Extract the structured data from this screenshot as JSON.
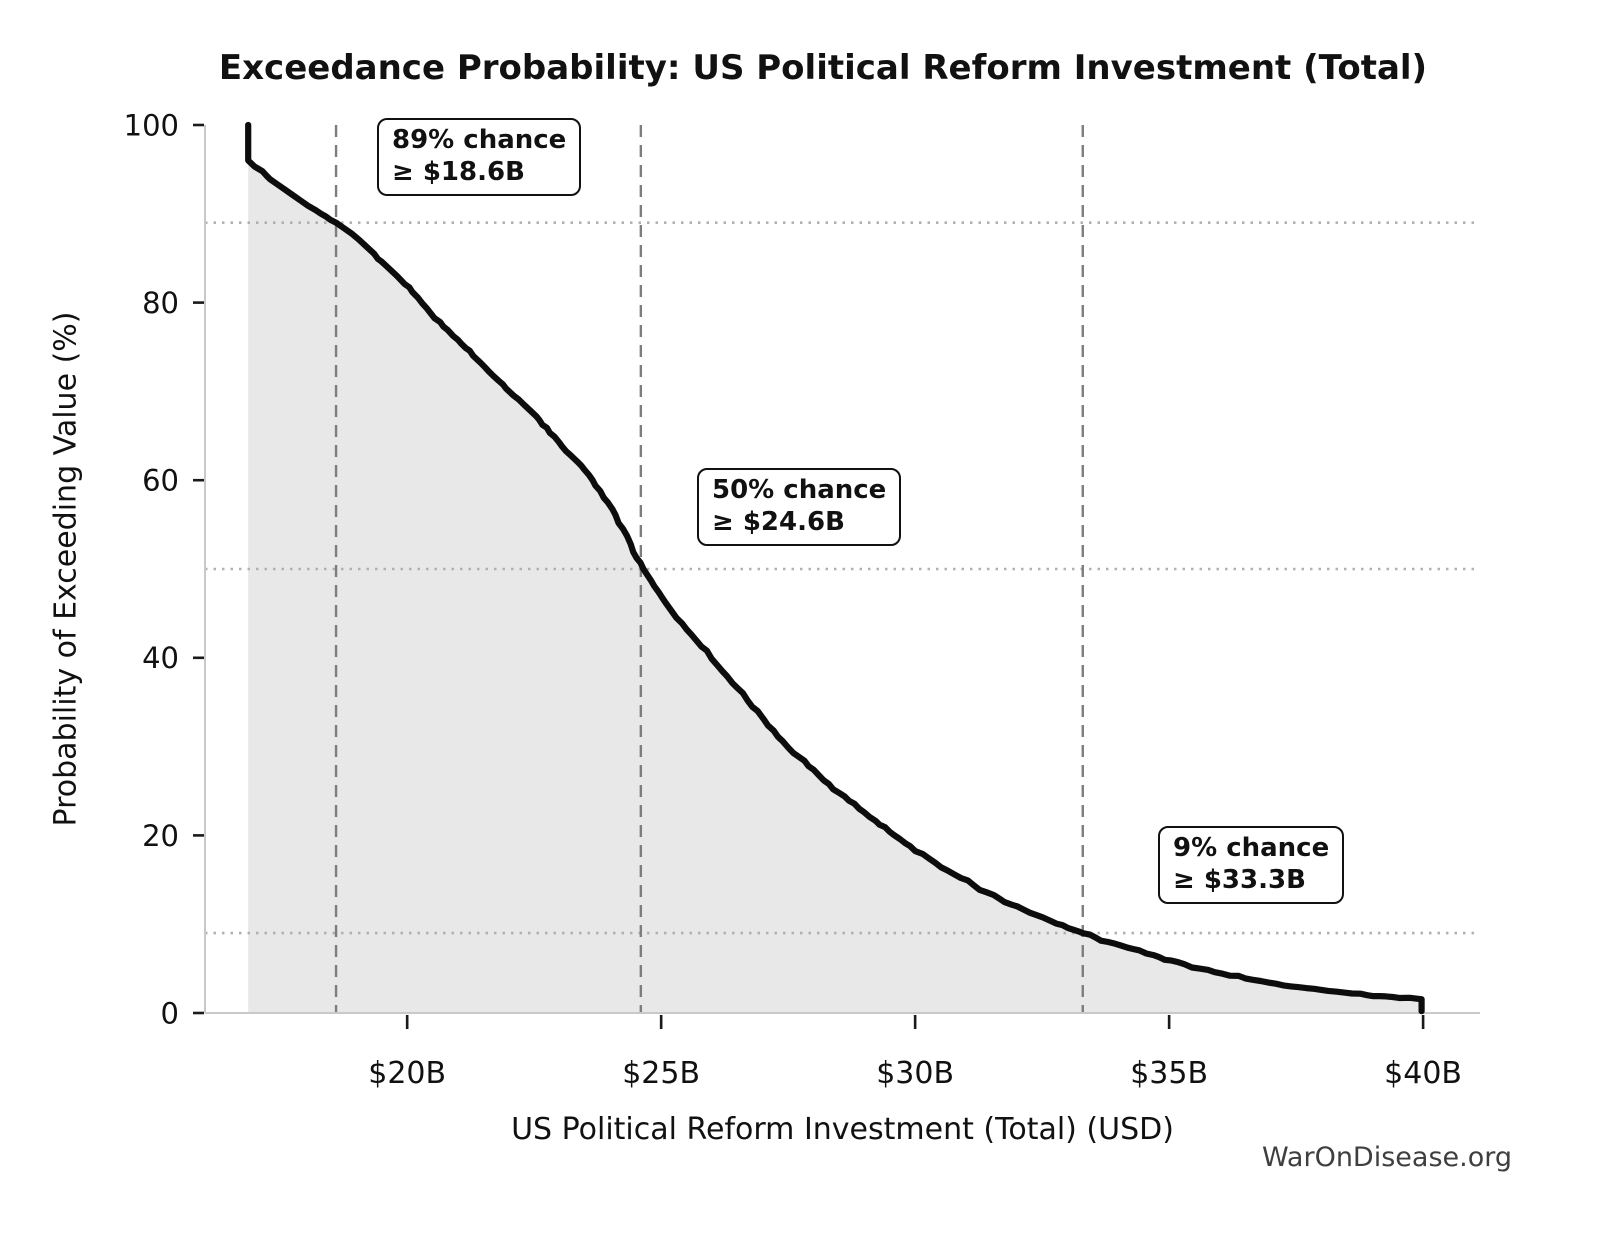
{
  "figure": {
    "title": "Exceedance Probability: US Political Reform Investment (Total)",
    "x_axis_label": "US Political Reform Investment (Total) (USD)",
    "y_axis_label": "Probability of Exceeding Value (%)",
    "watermark": "WarOnDisease.org"
  },
  "annotations": [
    {
      "line1": "89% chance",
      "line2": "≥ $18.6B",
      "value_b": 18.6,
      "probability_pct": 89
    },
    {
      "line1": "50% chance",
      "line2": "≥ $24.6B",
      "value_b": 24.6,
      "probability_pct": 50
    },
    {
      "line1": "9% chance",
      "line2": "≥ $33.3B",
      "value_b": 33.3,
      "probability_pct": 9
    }
  ],
  "chart_data": {
    "type": "line",
    "title": "Exceedance Probability: US Political Reform Investment (Total)",
    "xlabel": "US Political Reform Investment (Total) (USD)",
    "ylabel": "Probability of Exceeding Value (%)",
    "xlim": [
      16.02,
      41.12
    ],
    "ylim": [
      0,
      100
    ],
    "grid": "off (reference lines only)",
    "legend": "none",
    "x_ticks": [
      {
        "value": 20,
        "label": "$20B"
      },
      {
        "value": 25,
        "label": "$25B"
      },
      {
        "value": 30,
        "label": "$30B"
      },
      {
        "value": 35,
        "label": "$35B"
      },
      {
        "value": 40,
        "label": "$40B"
      }
    ],
    "y_ticks": [
      {
        "value": 0,
        "label": "0"
      },
      {
        "value": 20,
        "label": "20"
      },
      {
        "value": 40,
        "label": "40"
      },
      {
        "value": 60,
        "label": "60"
      },
      {
        "value": 80,
        "label": "80"
      },
      {
        "value": 100,
        "label": "100"
      }
    ],
    "reference_lines": {
      "vertical_dashed_values_b": [
        18.6,
        24.6,
        33.3
      ],
      "horizontal_dotted_probs_pct": [
        89,
        50,
        9
      ]
    },
    "series": [
      {
        "name": "Exceedance probability",
        "points_value_b_vs_prob_pct": [
          [
            16.87,
            100
          ],
          [
            16.87,
            96.0
          ],
          [
            17.0,
            95.3
          ],
          [
            17.15,
            94.8
          ],
          [
            17.3,
            93.9
          ],
          [
            17.45,
            93.3
          ],
          [
            17.6,
            92.7
          ],
          [
            17.75,
            92.1
          ],
          [
            17.9,
            91.5
          ],
          [
            18.05,
            90.9
          ],
          [
            18.2,
            90.4
          ],
          [
            18.4,
            89.7
          ],
          [
            18.6,
            89.0
          ],
          [
            18.75,
            88.4
          ],
          [
            18.9,
            87.8
          ],
          [
            19.05,
            87.1
          ],
          [
            19.2,
            86.3
          ],
          [
            19.35,
            85.5
          ],
          [
            19.5,
            84.6
          ],
          [
            19.65,
            83.8
          ],
          [
            19.8,
            83.0
          ],
          [
            19.95,
            82.1
          ],
          [
            20.1,
            81.2
          ],
          [
            20.3,
            79.9
          ],
          [
            20.45,
            78.9
          ],
          [
            20.65,
            77.8
          ],
          [
            20.8,
            76.9
          ],
          [
            21.0,
            75.8
          ],
          [
            21.15,
            74.9
          ],
          [
            21.3,
            74.0
          ],
          [
            21.45,
            73.2
          ],
          [
            21.6,
            72.3
          ],
          [
            21.8,
            71.2
          ],
          [
            21.95,
            70.3
          ],
          [
            22.1,
            69.5
          ],
          [
            22.3,
            68.5
          ],
          [
            22.45,
            67.7
          ],
          [
            22.6,
            66.8
          ],
          [
            22.75,
            65.9
          ],
          [
            22.9,
            64.9
          ],
          [
            23.05,
            63.8
          ],
          [
            23.2,
            62.9
          ],
          [
            23.35,
            62.1
          ],
          [
            23.5,
            61.1
          ],
          [
            23.65,
            60.0
          ],
          [
            23.8,
            58.8
          ],
          [
            23.95,
            57.5
          ],
          [
            24.1,
            56.1
          ],
          [
            24.25,
            54.5
          ],
          [
            24.4,
            52.8
          ],
          [
            24.52,
            51.2
          ],
          [
            24.65,
            50.0
          ],
          [
            24.8,
            48.7
          ],
          [
            24.95,
            47.4
          ],
          [
            25.1,
            46.1
          ],
          [
            25.3,
            44.5
          ],
          [
            25.5,
            43.2
          ],
          [
            25.7,
            41.9
          ],
          [
            25.9,
            40.8
          ],
          [
            26.1,
            39.2
          ],
          [
            26.3,
            37.9
          ],
          [
            26.5,
            36.6
          ],
          [
            26.7,
            35.2
          ],
          [
            26.9,
            34.0
          ],
          [
            27.1,
            32.4
          ],
          [
            27.3,
            31.1
          ],
          [
            27.5,
            29.9
          ],
          [
            27.7,
            28.9
          ],
          [
            27.9,
            27.8
          ],
          [
            28.1,
            26.8
          ],
          [
            28.3,
            25.8
          ],
          [
            28.5,
            24.8
          ],
          [
            28.7,
            23.9
          ],
          [
            28.9,
            23.0
          ],
          [
            29.1,
            22.1
          ],
          [
            29.3,
            21.2
          ],
          [
            29.5,
            20.4
          ],
          [
            29.7,
            19.6
          ],
          [
            29.9,
            18.8
          ],
          [
            30.15,
            17.9
          ],
          [
            30.4,
            16.9
          ],
          [
            30.65,
            16.0
          ],
          [
            30.9,
            15.2
          ],
          [
            31.15,
            14.4
          ],
          [
            31.4,
            13.6
          ],
          [
            31.65,
            12.9
          ],
          [
            31.9,
            12.2
          ],
          [
            32.15,
            11.6
          ],
          [
            32.4,
            11.0
          ],
          [
            32.65,
            10.4
          ],
          [
            32.9,
            9.9
          ],
          [
            33.1,
            9.4
          ],
          [
            33.3,
            9.0
          ],
          [
            33.55,
            8.5
          ],
          [
            33.8,
            8.0
          ],
          [
            34.05,
            7.6
          ],
          [
            34.3,
            7.2
          ],
          [
            34.55,
            6.7
          ],
          [
            34.8,
            6.3
          ],
          [
            35.05,
            5.9
          ],
          [
            35.3,
            5.5
          ],
          [
            35.6,
            5.0
          ],
          [
            35.9,
            4.6
          ],
          [
            36.2,
            4.2
          ],
          [
            36.5,
            3.9
          ],
          [
            36.8,
            3.6
          ],
          [
            37.1,
            3.3
          ],
          [
            37.4,
            3.0
          ],
          [
            37.7,
            2.8
          ],
          [
            38.0,
            2.6
          ],
          [
            38.3,
            2.4
          ],
          [
            38.6,
            2.2
          ],
          [
            38.9,
            2.0
          ],
          [
            39.15,
            1.9
          ],
          [
            39.4,
            1.8
          ],
          [
            39.65,
            1.7
          ],
          [
            39.9,
            1.6
          ],
          [
            39.97,
            1.55
          ],
          [
            39.97,
            0.2
          ]
        ]
      }
    ],
    "colors": {
      "curve": "#0d0d0d",
      "area_fill": "#e8e8e8",
      "dashed_ref": "#7d7d7d",
      "dotted_ref": "#b0b0b0",
      "spine": "#c9c9c9",
      "tick": "#1a1a1a",
      "text": "#111111",
      "watermark": "#3f3f3f"
    }
  }
}
